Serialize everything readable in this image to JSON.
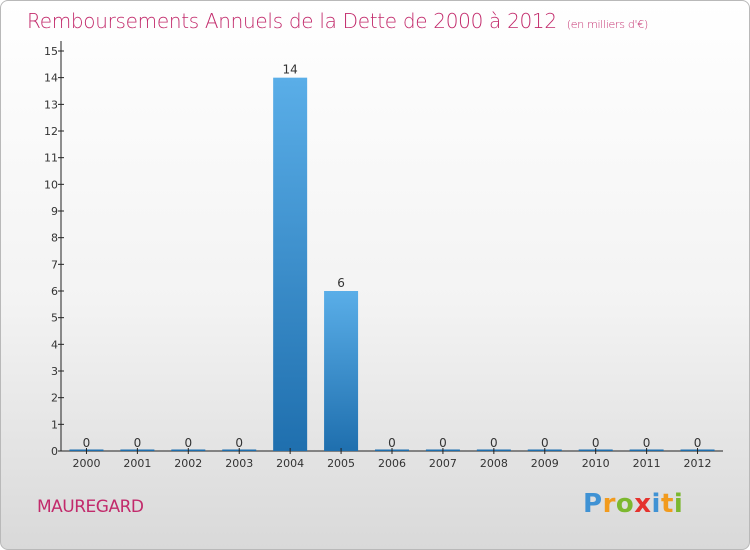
{
  "header": {
    "title": "Remboursements Annuels de la Dette de 2000 à 2012",
    "unit": "(en milliers d'€)"
  },
  "footer": {
    "commune": "MAUREGARD",
    "logo": "Proxiti"
  },
  "colors": {
    "accent": "#c22a6b",
    "bar_top": "#5aaee8",
    "bar_bottom": "#1f6fae"
  },
  "chart_data": {
    "type": "bar",
    "title": "Remboursements Annuels de la Dette de 2000 à 2012",
    "subtitle": "(en milliers d'€)",
    "xlabel": "",
    "ylabel": "",
    "categories": [
      "2000",
      "2001",
      "2002",
      "2003",
      "2004",
      "2005",
      "2006",
      "2007",
      "2008",
      "2009",
      "2010",
      "2011",
      "2012"
    ],
    "values": [
      0,
      0,
      0,
      0,
      14,
      6,
      0,
      0,
      0,
      0,
      0,
      0,
      0
    ],
    "data_labels": [
      "0",
      "0",
      "0",
      "0",
      "14",
      "6",
      "0",
      "0",
      "0",
      "0",
      "0",
      "0",
      "0"
    ],
    "ylim": [
      0,
      15
    ],
    "yticks": [
      0,
      1,
      2,
      3,
      4,
      5,
      6,
      7,
      8,
      9,
      10,
      11,
      12,
      13,
      14,
      15
    ],
    "grid": false,
    "legend": "none"
  }
}
